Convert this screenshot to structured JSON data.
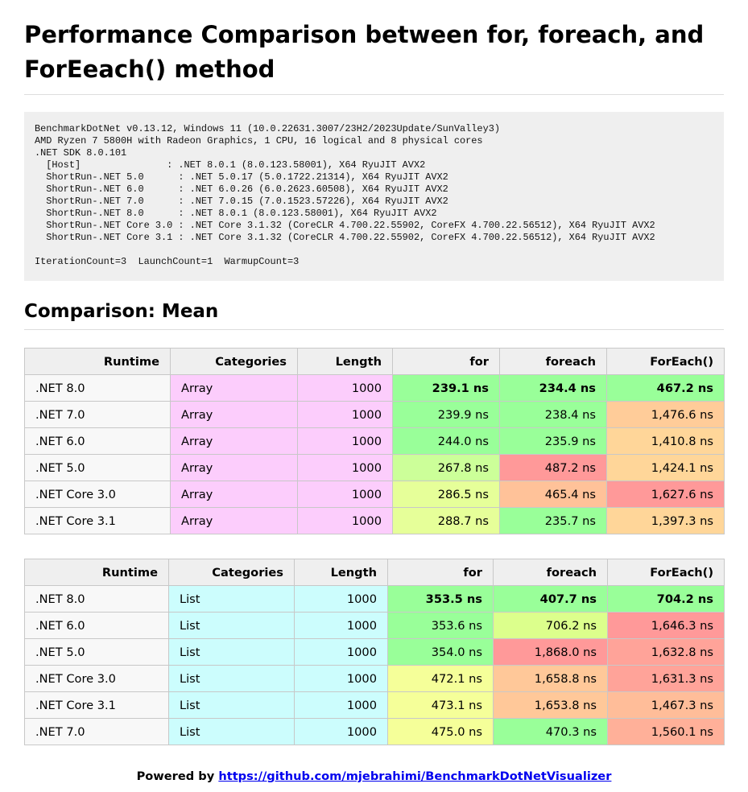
{
  "title": "Performance Comparison between for, foreach, and ForEeach() method",
  "environment": "BenchmarkDotNet v0.13.12, Windows 11 (10.0.22631.3007/23H2/2023Update/SunValley3)\nAMD Ryzen 7 5800H with Radeon Graphics, 1 CPU, 16 logical and 8 physical cores\n.NET SDK 8.0.101\n  [Host]               : .NET 8.0.1 (8.0.123.58001), X64 RyuJIT AVX2\n  ShortRun-.NET 5.0      : .NET 5.0.17 (5.0.1722.21314), X64 RyuJIT AVX2\n  ShortRun-.NET 6.0      : .NET 6.0.26 (6.0.2623.60508), X64 RyuJIT AVX2\n  ShortRun-.NET 7.0      : .NET 7.0.15 (7.0.1523.57226), X64 RyuJIT AVX2\n  ShortRun-.NET 8.0      : .NET 8.0.1 (8.0.123.58001), X64 RyuJIT AVX2\n  ShortRun-.NET Core 3.0 : .NET Core 3.1.32 (CoreCLR 4.700.22.55902, CoreFX 4.700.22.56512), X64 RyuJIT AVX2\n  ShortRun-.NET Core 3.1 : .NET Core 3.1.32 (CoreCLR 4.700.22.55902, CoreFX 4.700.22.56512), X64 RyuJIT AVX2\n\nIterationCount=3  LaunchCount=1  WarmupCount=3",
  "comparison_heading": "Comparison: Mean",
  "colors": {
    "array_category": "#fccdfc",
    "list_category": "#ccfdfd",
    "best": "#99ff99",
    "good": "#dcff8c",
    "fair": "#f5ff99",
    "slow": "#ffcc99",
    "slower": "#ffbb88",
    "slowest": "#ff9999"
  },
  "columns": [
    "Runtime",
    "Categories",
    "Length",
    "for",
    "foreach",
    "ForEach()"
  ],
  "tables": [
    {
      "rows": [
        {
          "runtime": ".NET 8.0",
          "category": "Array",
          "length": "1000",
          "for": {
            "text": "239.1 ns",
            "color": "#99ff99",
            "bold": true
          },
          "foreach": {
            "text": "234.4 ns",
            "color": "#99ff99",
            "bold": true
          },
          "foreach_method": {
            "text": "467.2 ns",
            "color": "#99ff99",
            "bold": true
          }
        },
        {
          "runtime": ".NET 7.0",
          "category": "Array",
          "length": "1000",
          "for": {
            "text": "239.9 ns",
            "color": "#99ff99",
            "bold": false
          },
          "foreach": {
            "text": "238.4 ns",
            "color": "#99ff99",
            "bold": false
          },
          "foreach_method": {
            "text": "1,476.6 ns",
            "color": "#ffcc99",
            "bold": false
          }
        },
        {
          "runtime": ".NET 6.0",
          "category": "Array",
          "length": "1000",
          "for": {
            "text": "244.0 ns",
            "color": "#99ff99",
            "bold": false
          },
          "foreach": {
            "text": "235.9 ns",
            "color": "#99ff99",
            "bold": false
          },
          "foreach_method": {
            "text": "1,410.8 ns",
            "color": "#ffd699",
            "bold": false
          }
        },
        {
          "runtime": ".NET 5.0",
          "category": "Array",
          "length": "1000",
          "for": {
            "text": "267.8 ns",
            "color": "#ccff99",
            "bold": false
          },
          "foreach": {
            "text": "487.2 ns",
            "color": "#ff9999",
            "bold": false
          },
          "foreach_method": {
            "text": "1,424.1 ns",
            "color": "#ffd699",
            "bold": false
          }
        },
        {
          "runtime": ".NET Core 3.0",
          "category": "Array",
          "length": "1000",
          "for": {
            "text": "286.5 ns",
            "color": "#e6ff99",
            "bold": false
          },
          "foreach": {
            "text": "465.4 ns",
            "color": "#ffc299",
            "bold": false
          },
          "foreach_method": {
            "text": "1,627.6 ns",
            "color": "#ff9999",
            "bold": false
          }
        },
        {
          "runtime": ".NET Core 3.1",
          "category": "Array",
          "length": "1000",
          "for": {
            "text": "288.7 ns",
            "color": "#e6ff99",
            "bold": false
          },
          "foreach": {
            "text": "235.7 ns",
            "color": "#99ff99",
            "bold": false
          },
          "foreach_method": {
            "text": "1,397.3 ns",
            "color": "#ffd699",
            "bold": false
          }
        }
      ]
    },
    {
      "rows": [
        {
          "runtime": ".NET 8.0",
          "category": "List",
          "length": "1000",
          "for": {
            "text": "353.5 ns",
            "color": "#99ff99",
            "bold": true
          },
          "foreach": {
            "text": "407.7 ns",
            "color": "#99ff99",
            "bold": true
          },
          "foreach_method": {
            "text": "704.2 ns",
            "color": "#99ff99",
            "bold": true
          }
        },
        {
          "runtime": ".NET 6.0",
          "category": "List",
          "length": "1000",
          "for": {
            "text": "353.6 ns",
            "color": "#99ff99",
            "bold": false
          },
          "foreach": {
            "text": "706.2 ns",
            "color": "#dcff8c",
            "bold": false
          },
          "foreach_method": {
            "text": "1,646.3 ns",
            "color": "#ff9999",
            "bold": false
          }
        },
        {
          "runtime": ".NET 5.0",
          "category": "List",
          "length": "1000",
          "for": {
            "text": "354.0 ns",
            "color": "#99ff99",
            "bold": false
          },
          "foreach": {
            "text": "1,868.0 ns",
            "color": "#ff9999",
            "bold": false
          },
          "foreach_method": {
            "text": "1,632.8 ns",
            "color": "#ffa399",
            "bold": false
          }
        },
        {
          "runtime": ".NET Core 3.0",
          "category": "List",
          "length": "1000",
          "for": {
            "text": "472.1 ns",
            "color": "#f5ff99",
            "bold": false
          },
          "foreach": {
            "text": "1,658.8 ns",
            "color": "#ffc899",
            "bold": false
          },
          "foreach_method": {
            "text": "1,631.3 ns",
            "color": "#ffa399",
            "bold": false
          }
        },
        {
          "runtime": ".NET Core 3.1",
          "category": "List",
          "length": "1000",
          "for": {
            "text": "473.1 ns",
            "color": "#f5ff99",
            "bold": false
          },
          "foreach": {
            "text": "1,653.8 ns",
            "color": "#ffc899",
            "bold": false
          },
          "foreach_method": {
            "text": "1,467.3 ns",
            "color": "#ffbd99",
            "bold": false
          }
        },
        {
          "runtime": ".NET 7.0",
          "category": "List",
          "length": "1000",
          "for": {
            "text": "475.0 ns",
            "color": "#f5ff99",
            "bold": false
          },
          "foreach": {
            "text": "470.3 ns",
            "color": "#99ff99",
            "bold": false
          },
          "foreach_method": {
            "text": "1,560.1 ns",
            "color": "#ffb099",
            "bold": false
          }
        }
      ]
    }
  ],
  "footer": {
    "prefix": "Powered by ",
    "link_text": "https://github.com/mjebrahimi/BenchmarkDotNetVisualizer"
  }
}
